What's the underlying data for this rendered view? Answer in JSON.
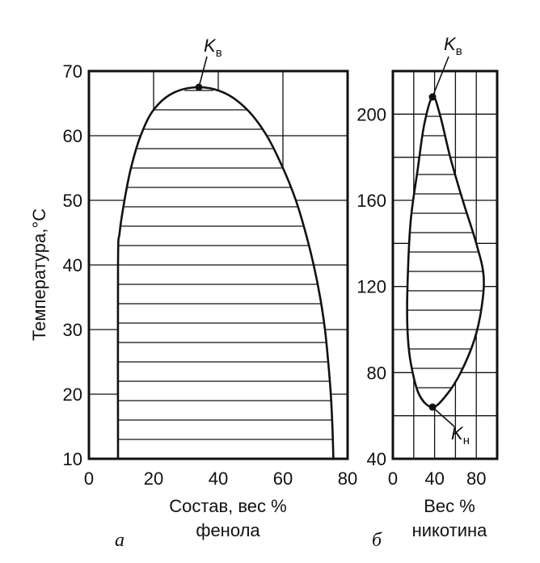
{
  "chart_data": [
    {
      "panel": "а",
      "type": "line",
      "ylabel": "Температура,°C",
      "xlabel_line1": "Состав, вес %",
      "xlabel_line2": "фенола",
      "xlim": [
        0,
        80
      ],
      "ylim": [
        10,
        70
      ],
      "xticks": [
        "0",
        "20",
        "40",
        "60",
        "80"
      ],
      "yticks": [
        "10",
        "20",
        "30",
        "40",
        "50",
        "60",
        "70"
      ],
      "grid": true,
      "critical_point": {
        "label": "K",
        "sub": "в",
        "x": 34,
        "y": 67.5
      },
      "binodal_left": [
        {
          "x": 9,
          "y": 10
        },
        {
          "x": 9,
          "y": 40
        },
        {
          "x": 9.5,
          "y": 45
        },
        {
          "x": 11,
          "y": 50
        },
        {
          "x": 13,
          "y": 55
        },
        {
          "x": 16,
          "y": 60
        },
        {
          "x": 20,
          "y": 64
        },
        {
          "x": 26,
          "y": 66.6
        },
        {
          "x": 34,
          "y": 67.5
        }
      ],
      "binodal_right": [
        {
          "x": 34,
          "y": 67.5
        },
        {
          "x": 42,
          "y": 66.6
        },
        {
          "x": 49,
          "y": 64
        },
        {
          "x": 55,
          "y": 60
        },
        {
          "x": 60,
          "y": 55
        },
        {
          "x": 64,
          "y": 50
        },
        {
          "x": 67,
          "y": 45
        },
        {
          "x": 69.5,
          "y": 40
        },
        {
          "x": 71.5,
          "y": 35
        },
        {
          "x": 73,
          "y": 30
        },
        {
          "x": 74,
          "y": 25
        },
        {
          "x": 74.8,
          "y": 20
        },
        {
          "x": 75.3,
          "y": 15
        },
        {
          "x": 75.6,
          "y": 10
        }
      ],
      "hatch_step": 3
    },
    {
      "panel": "б",
      "type": "line",
      "xlabel_line1": "Вес %",
      "xlabel_line2": "никотина",
      "xlim": [
        0,
        100
      ],
      "ylim": [
        40,
        220
      ],
      "xticks": [
        "0",
        "40",
        "80"
      ],
      "yticks": [
        "40",
        "80",
        "120",
        "160",
        "200"
      ],
      "grid": true,
      "critical_points": [
        {
          "label": "K",
          "sub": "в",
          "x": 38,
          "y": 208
        },
        {
          "label": "K",
          "sub": "н",
          "x": 38,
          "y": 64
        }
      ],
      "binodal_closed": [
        {
          "x": 38,
          "y": 208
        },
        {
          "x": 45,
          "y": 200
        },
        {
          "x": 55,
          "y": 180
        },
        {
          "x": 67,
          "y": 160
        },
        {
          "x": 80,
          "y": 140
        },
        {
          "x": 87,
          "y": 125
        },
        {
          "x": 85,
          "y": 110
        },
        {
          "x": 78,
          "y": 95
        },
        {
          "x": 65,
          "y": 80
        },
        {
          "x": 52,
          "y": 70
        },
        {
          "x": 38,
          "y": 64
        },
        {
          "x": 25,
          "y": 70
        },
        {
          "x": 17,
          "y": 85
        },
        {
          "x": 14,
          "y": 100
        },
        {
          "x": 14,
          "y": 120
        },
        {
          "x": 17,
          "y": 150
        },
        {
          "x": 24,
          "y": 175
        },
        {
          "x": 30,
          "y": 195
        },
        {
          "x": 38,
          "y": 208
        }
      ],
      "hatch_step": 9
    }
  ],
  "labels": {
    "panel_a": "а",
    "panel_b": "б",
    "k_letter": "K",
    "k_sub_upper": "в",
    "k_sub_lower": "н"
  }
}
